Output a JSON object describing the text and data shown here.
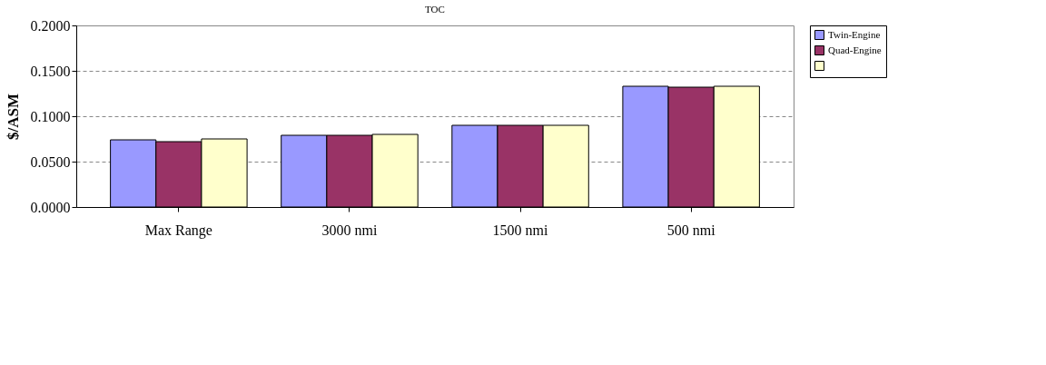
{
  "chart_data": {
    "type": "bar",
    "title": "TOC",
    "ylabel": "$/ASM",
    "categories": [
      "Max Range",
      "3000 nmi",
      "1500 nmi",
      "500 nmi"
    ],
    "series": [
      {
        "name": "Twin-Engine",
        "color": "#9999ff",
        "values": [
          0.074,
          0.079,
          0.09,
          0.133
        ]
      },
      {
        "name": "Quad-Engine",
        "color": "#993366",
        "values": [
          0.072,
          0.079,
          0.09,
          0.132
        ]
      },
      {
        "color": "#ffffcc",
        "values": [
          0.075,
          0.08,
          0.09,
          0.133
        ]
      }
    ],
    "ylim": [
      0,
      0.2
    ],
    "yticks": [
      {
        "value": 0,
        "label": "0.0000"
      },
      {
        "value": 0.05,
        "label": "0.0500"
      },
      {
        "value": 0.1,
        "label": "0.1000"
      },
      {
        "value": 0.15,
        "label": "0.1500"
      },
      {
        "value": 0.2,
        "label": "0.2000"
      }
    ],
    "grid": "y",
    "legend": "right"
  }
}
